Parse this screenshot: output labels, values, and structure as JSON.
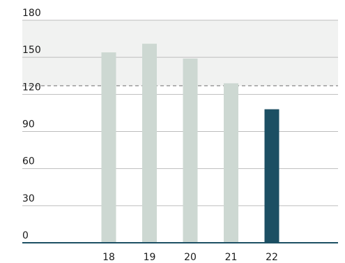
{
  "chart_data": {
    "type": "bar",
    "categories": [
      "18",
      "19",
      "20",
      "21",
      "22"
    ],
    "values": [
      154,
      161,
      149,
      129,
      108
    ],
    "ylim": [
      0,
      180
    ],
    "yticks": [
      0,
      30,
      60,
      90,
      120,
      150,
      180
    ],
    "reference_line": 127,
    "shaded_band": [
      127,
      180
    ],
    "grid": true,
    "colors": {
      "bar": "#cdd8d2",
      "highlight_bar": "#1c4f63",
      "band": "#f1f2f1"
    },
    "highlight_index": 4
  }
}
